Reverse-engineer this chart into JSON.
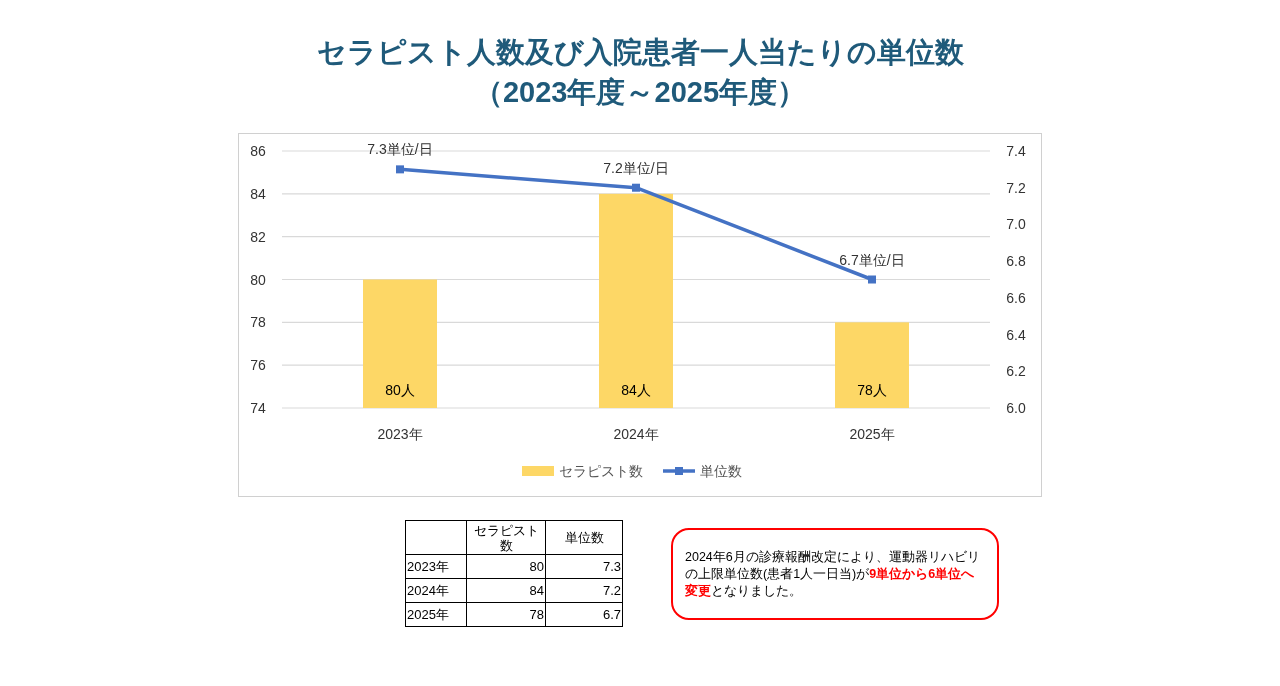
{
  "chart_data": {
    "type": "bar",
    "title": "セラピスト人数及び入院患者一人当たりの単位数",
    "subtitle": "（2023年度～2025年度）",
    "categories": [
      "2023年",
      "2024年",
      "2025年"
    ],
    "series": [
      {
        "name": "セラピスト数",
        "color": "#fdd766",
        "values": [
          80,
          84,
          78
        ],
        "value_labels": [
          "80人",
          "84人",
          "78人"
        ]
      },
      {
        "name": "単位数",
        "type": "line",
        "axis": "y2",
        "color": "#4472c4",
        "marker": "square",
        "values": [
          7.3,
          7.2,
          6.7
        ],
        "value_labels": [
          "7.3単位/日",
          "7.2単位/日",
          "6.7単位/日"
        ]
      }
    ],
    "ylim": [
      74,
      86
    ],
    "yticks": [
      74,
      76,
      78,
      80,
      82,
      84,
      86
    ],
    "y2lim": [
      6.0,
      7.4
    ],
    "y2ticks": [
      {
        "value": 6.0,
        "label": "6.0"
      },
      {
        "value": 6.2,
        "label": "6.2"
      },
      {
        "value": 6.4,
        "label": "6.4"
      },
      {
        "value": 6.6,
        "label": "6.6"
      },
      {
        "value": 6.8,
        "label": "6.8"
      },
      {
        "value": 7.0,
        "label": "7.0"
      },
      {
        "value": 7.2,
        "label": "7.2"
      },
      {
        "value": 7.4,
        "label": "7.4"
      }
    ],
    "grid": "y",
    "legend": "bottom",
    "data_labels": true,
    "annotations": [
      "2024年6月の診療報酬改定により、運動器リハビリの上限単位数(患者1人一日当)が",
      "9単位から6単位へ変更",
      "となりました。",
      "80",
      "7.3",
      "84",
      "7.2",
      "78",
      "6.7"
    ]
  }
}
